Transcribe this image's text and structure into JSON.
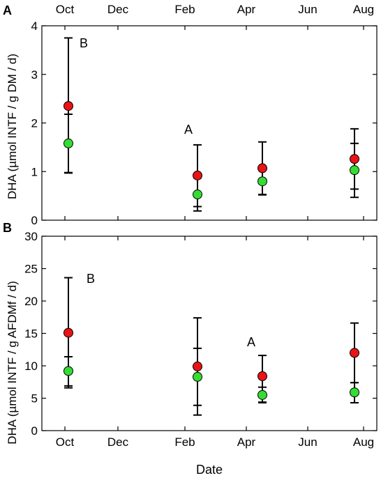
{
  "colors": {
    "red": "#e81416",
    "green": "#33dd33",
    "stroke": "#000000"
  },
  "shared_x_tick_labels": [
    "Oct",
    "Dec",
    "Feb",
    "Apr",
    "Jun",
    "Aug"
  ],
  "x_axis_label": "Date",
  "chart_data": [
    {
      "type": "scatter",
      "panel": "A",
      "ylabel": "DHA (µmol INTF / g DM / d)",
      "ylim": [
        0,
        4
      ],
      "yticks": [
        "0",
        "1",
        "2",
        "3",
        "4"
      ],
      "x_tick_labels": [
        "Oct",
        "Dec",
        "Feb",
        "Apr",
        "Jun",
        "Aug"
      ],
      "x_tick_position": "top",
      "grid": false,
      "categories": [
        "Oct",
        "Feb",
        "Apr",
        "Aug"
      ],
      "annotations": [
        {
          "text": "B",
          "near": "Oct"
        },
        {
          "text": "A",
          "near": "Feb"
        }
      ],
      "series": [
        {
          "color": "red",
          "values": [
            2.35,
            0.92,
            1.07,
            1.26
          ],
          "err_low": [
            0.98,
            0.28,
            0.53,
            0.64
          ],
          "err_high": [
            3.75,
            1.55,
            1.61,
            1.88
          ]
        },
        {
          "color": "green",
          "values": [
            1.58,
            0.53,
            0.8,
            1.03
          ],
          "err_low": [
            0.97,
            0.19,
            0.52,
            0.47
          ],
          "err_high": [
            2.18,
            0.87,
            1.1,
            1.58
          ]
        }
      ]
    },
    {
      "type": "scatter",
      "panel": "B",
      "ylabel": "DHA (µmol INTF / g AFDMf / d)",
      "ylim": [
        0,
        30
      ],
      "yticks": [
        "0",
        "5",
        "10",
        "15",
        "20",
        "25",
        "30"
      ],
      "x_tick_labels": [
        "Oct",
        "Dec",
        "Feb",
        "Apr",
        "Jun",
        "Aug"
      ],
      "x_tick_position": "bottom",
      "grid": false,
      "categories": [
        "Oct",
        "Feb",
        "Apr",
        "Aug"
      ],
      "annotations": [
        {
          "text": "B",
          "near": "Oct"
        },
        {
          "text": "A",
          "near": "Apr"
        }
      ],
      "series": [
        {
          "color": "red",
          "values": [
            15.1,
            9.9,
            8.4,
            12.0
          ],
          "err_low": [
            6.6,
            2.4,
            4.4,
            7.4
          ],
          "err_high": [
            23.6,
            17.4,
            11.6,
            16.6
          ]
        },
        {
          "color": "green",
          "values": [
            9.2,
            8.3,
            5.5,
            5.9
          ],
          "err_low": [
            6.9,
            3.9,
            4.3,
            4.3
          ],
          "err_high": [
            11.4,
            12.7,
            6.7,
            7.4
          ]
        }
      ]
    }
  ]
}
